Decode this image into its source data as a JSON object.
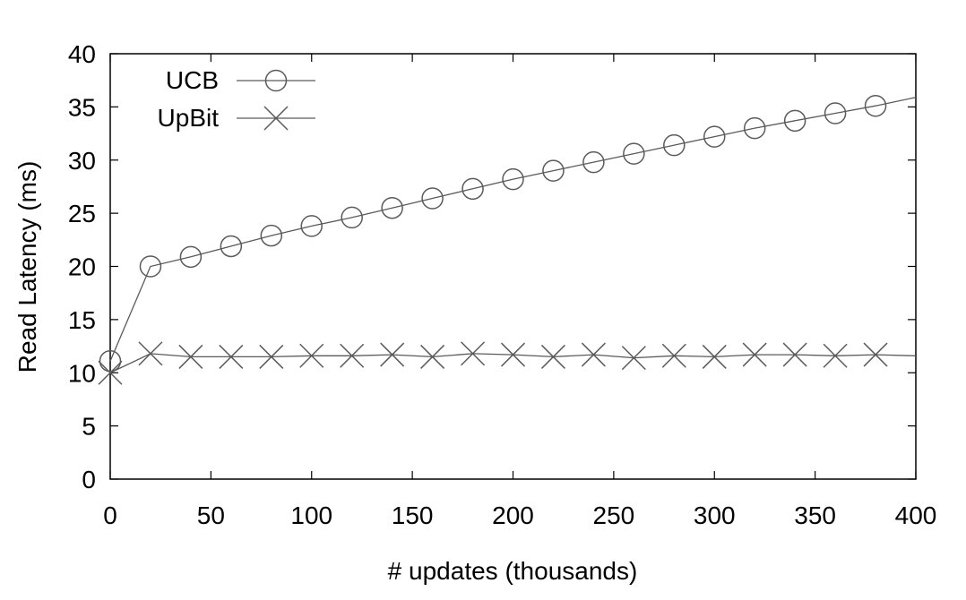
{
  "chart_data": {
    "type": "line",
    "xlabel": "# updates (thousands)",
    "ylabel": "Read Latency (ms)",
    "xlim": [
      0,
      400
    ],
    "ylim": [
      0,
      40
    ],
    "x_ticks": [
      0,
      50,
      100,
      150,
      200,
      250,
      300,
      350,
      400
    ],
    "y_ticks": [
      0,
      5,
      10,
      15,
      20,
      25,
      30,
      35,
      40
    ],
    "grid": false,
    "legend_position": "top-left",
    "series": [
      {
        "name": "UCB",
        "marker": "circle",
        "x": [
          0,
          20,
          40,
          60,
          80,
          100,
          120,
          140,
          160,
          180,
          200,
          220,
          240,
          260,
          280,
          300,
          320,
          340,
          360,
          380,
          400
        ],
        "y": [
          11.1,
          20.0,
          20.9,
          21.9,
          22.9,
          23.8,
          24.6,
          25.5,
          26.4,
          27.3,
          28.2,
          29.0,
          29.8,
          30.6,
          31.4,
          32.2,
          33.0,
          33.7,
          34.4,
          35.1,
          35.9
        ],
        "marker_x": [
          0,
          20,
          40,
          60,
          80,
          100,
          120,
          140,
          160,
          180,
          200,
          220,
          240,
          260,
          280,
          300,
          320,
          340,
          360,
          380
        ]
      },
      {
        "name": "UpBit",
        "marker": "x",
        "x": [
          0,
          20,
          40,
          60,
          80,
          100,
          120,
          140,
          160,
          180,
          200,
          220,
          240,
          260,
          280,
          300,
          320,
          340,
          360,
          380,
          400
        ],
        "y": [
          10.0,
          11.8,
          11.5,
          11.5,
          11.5,
          11.6,
          11.6,
          11.7,
          11.5,
          11.8,
          11.7,
          11.5,
          11.7,
          11.4,
          11.6,
          11.5,
          11.7,
          11.7,
          11.6,
          11.7,
          11.6
        ],
        "marker_x": [
          0,
          20,
          40,
          60,
          80,
          100,
          120,
          140,
          160,
          180,
          200,
          220,
          240,
          260,
          280,
          300,
          320,
          340,
          360,
          380
        ]
      }
    ]
  }
}
